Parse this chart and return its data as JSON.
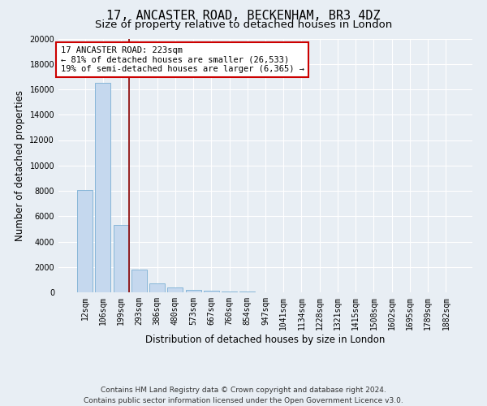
{
  "title": "17, ANCASTER ROAD, BECKENHAM, BR3 4DZ",
  "subtitle": "Size of property relative to detached houses in London",
  "xlabel": "Distribution of detached houses by size in London",
  "ylabel": "Number of detached properties",
  "footer_line1": "Contains HM Land Registry data © Crown copyright and database right 2024.",
  "footer_line2": "Contains public sector information licensed under the Open Government Licence v3.0.",
  "categories": [
    "12sqm",
    "106sqm",
    "199sqm",
    "293sqm",
    "386sqm",
    "480sqm",
    "573sqm",
    "667sqm",
    "760sqm",
    "854sqm",
    "947sqm",
    "1041sqm",
    "1134sqm",
    "1228sqm",
    "1321sqm",
    "1415sqm",
    "1508sqm",
    "1602sqm",
    "1695sqm",
    "1789sqm",
    "1882sqm"
  ],
  "values": [
    8050,
    16500,
    5300,
    1800,
    700,
    370,
    200,
    110,
    65,
    40,
    25,
    18,
    13,
    10,
    7,
    5,
    3,
    2,
    1,
    1,
    1
  ],
  "bar_color": "#c5d8ee",
  "bar_edge_color": "#7aafd4",
  "ylim": [
    0,
    20000
  ],
  "yticks": [
    0,
    2000,
    4000,
    6000,
    8000,
    10000,
    12000,
    14000,
    16000,
    18000,
    20000
  ],
  "vline_color": "#8b0000",
  "vline_bar_index": 2,
  "annotation_text": "17 ANCASTER ROAD: 223sqm\n← 81% of detached houses are smaller (26,533)\n19% of semi-detached houses are larger (6,365) →",
  "annotation_box_color": "white",
  "annotation_box_edge_color": "#cc0000",
  "bg_color": "#e8eef4",
  "plot_bg_color": "#e8eef4",
  "grid_color": "white",
  "title_fontsize": 11,
  "subtitle_fontsize": 9.5,
  "label_fontsize": 8.5,
  "tick_fontsize": 7,
  "annotation_fontsize": 7.5,
  "footer_fontsize": 6.5
}
